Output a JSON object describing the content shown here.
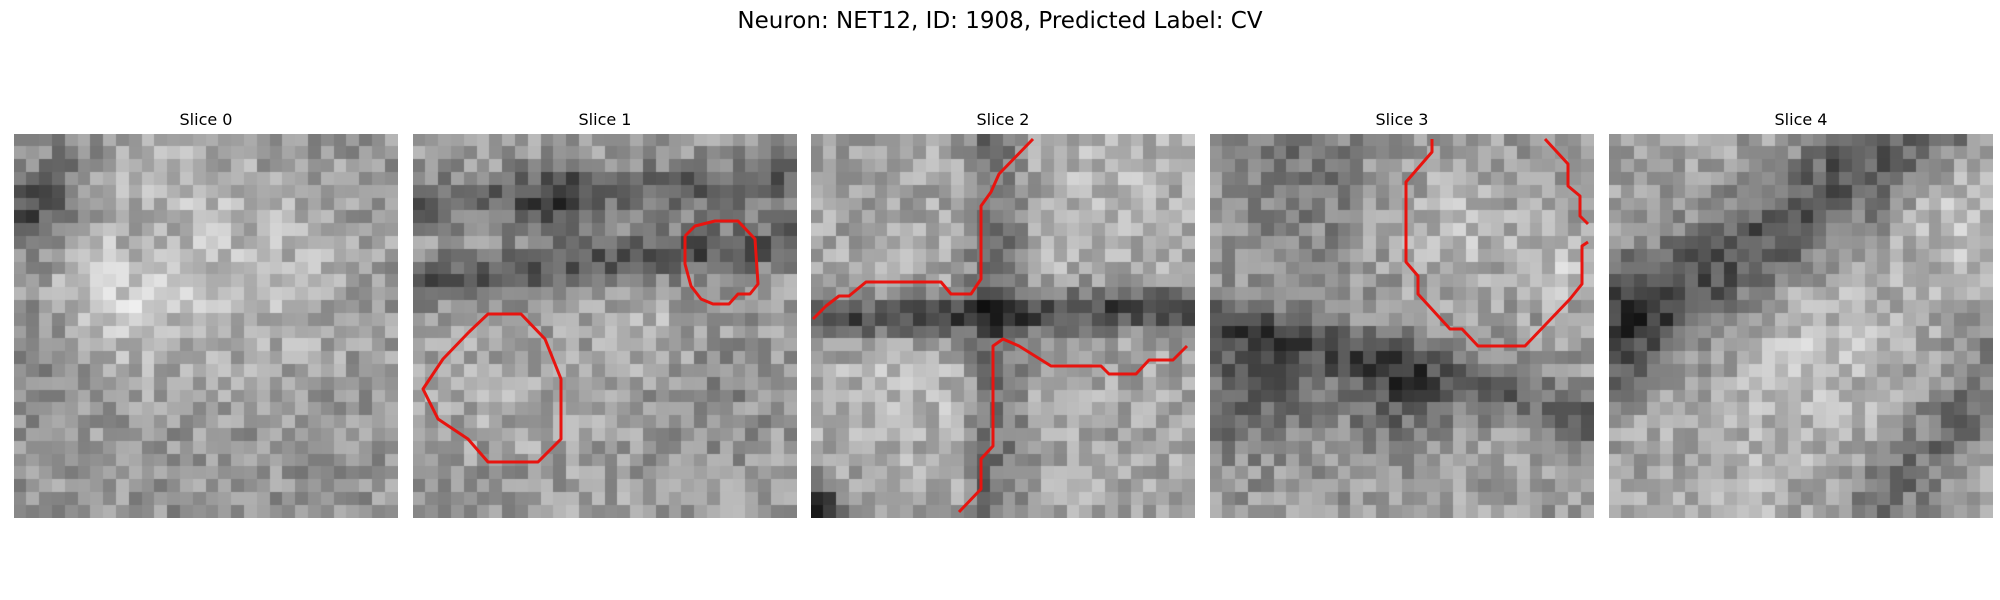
{
  "figure": {
    "title": "Neuron: NET12, ID: 1908, Predicted Label: CV"
  },
  "panels": [
    {
      "title": "Slice 0",
      "seed": 11,
      "pattern": "slice0",
      "has_contour": false
    },
    {
      "title": "Slice 1",
      "seed": 23,
      "pattern": "slice1",
      "has_contour": true
    },
    {
      "title": "Slice 2",
      "seed": 37,
      "pattern": "slice2",
      "has_contour": true
    },
    {
      "title": "Slice 3",
      "seed": 53,
      "pattern": "slice3",
      "has_contour": true
    },
    {
      "title": "Slice 4",
      "seed": 71,
      "pattern": "slice4",
      "has_contour": false
    }
  ],
  "colors": {
    "contour": "#e8140f",
    "background": "#ffffff"
  }
}
